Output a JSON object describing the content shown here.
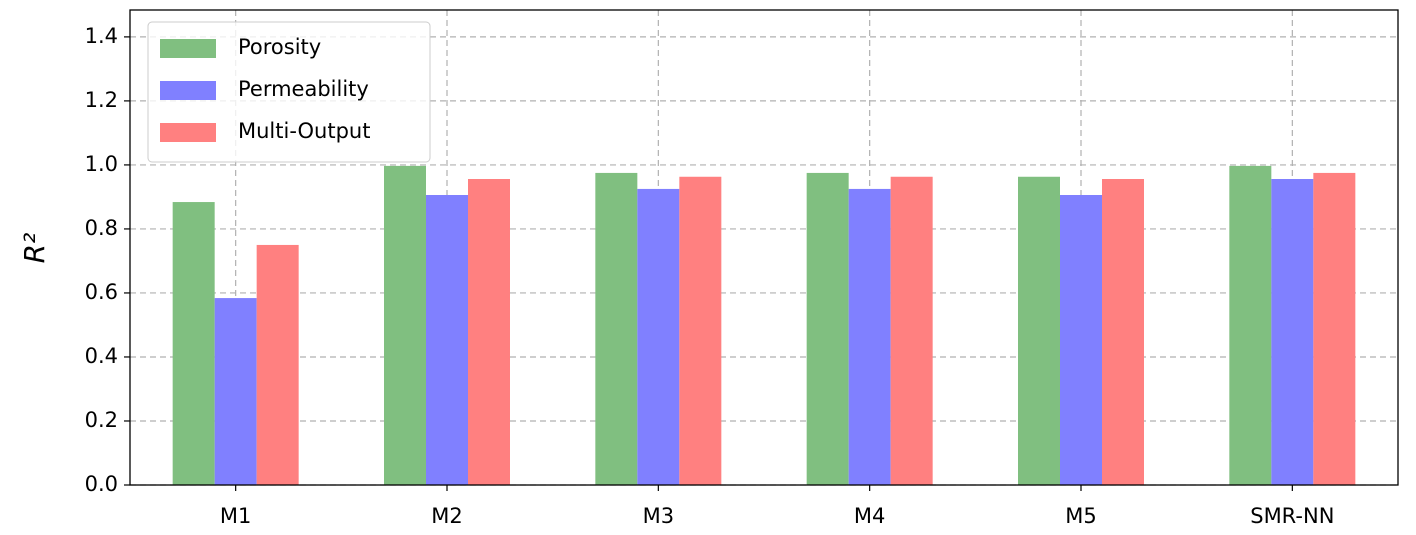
{
  "chart_data": {
    "type": "bar",
    "y_label": "R²",
    "categories": [
      "M1",
      "M2",
      "M3",
      "M4",
      "M5",
      "SMR-NN"
    ],
    "series": [
      {
        "name": "Porosity",
        "color": "#80bf80",
        "values": [
          0.884,
          0.997,
          0.975,
          0.975,
          0.963,
          0.997
        ]
      },
      {
        "name": "Permeability",
        "color": "#8080ff",
        "values": [
          0.584,
          0.906,
          0.925,
          0.925,
          0.906,
          0.956
        ]
      },
      {
        "name": "Multi-Output",
        "color": "#ff8080",
        "values": [
          0.75,
          0.956,
          0.963,
          0.963,
          0.956,
          0.975
        ]
      }
    ],
    "ylim": [
      0,
      1.484
    ],
    "yticks": [
      {
        "value": 0,
        "label": "0.0"
      },
      0.2,
      0.4,
      0.6,
      0.8,
      {
        "value": 1,
        "label": "1.0"
      },
      1.2,
      1.4
    ],
    "grid": true,
    "legend": "upper left"
  }
}
